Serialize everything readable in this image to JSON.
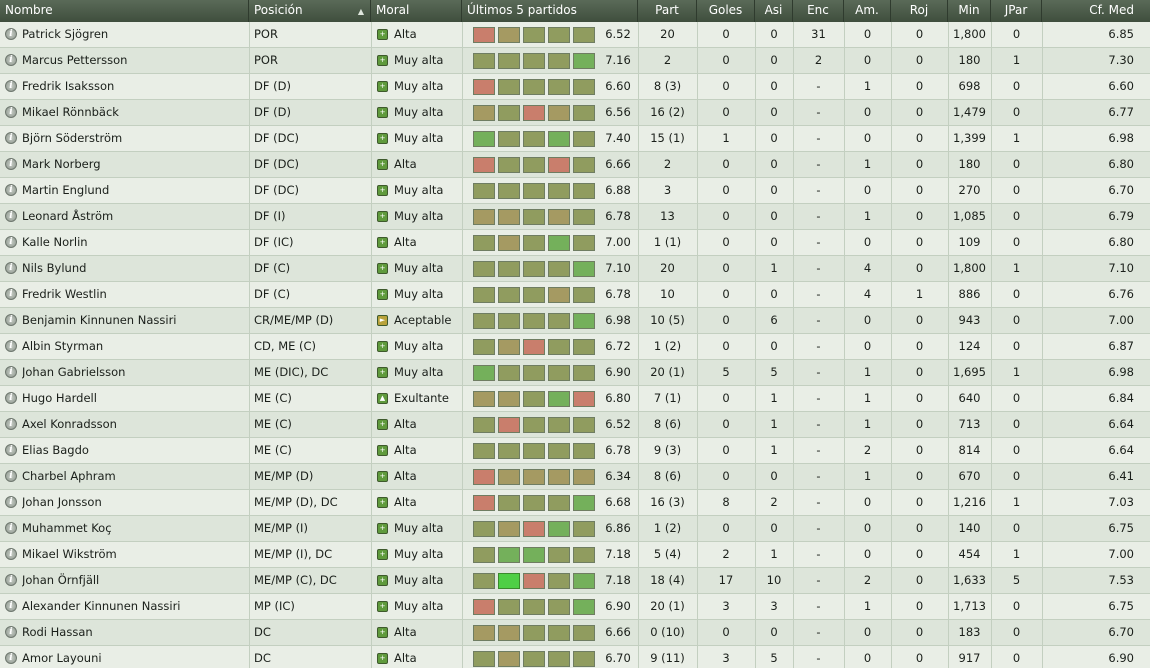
{
  "colors": {
    "bad": "#c97e6c",
    "avg": "#a59a62",
    "fair": "#909c5f",
    "good": "#74b05b",
    "best": "#4fcf45",
    "moral_high": "#5f9a3c",
    "moral_ok": "#b8a23a"
  },
  "header": {
    "name": "Nombre",
    "position": "Posición",
    "moral": "Moral",
    "last5": "Últimos 5 partidos",
    "apps": "Part",
    "goals": "Goles",
    "assists": "Asi",
    "enc": "Enc",
    "yellow": "Am.",
    "red": "Roj",
    "minutes": "Min",
    "jpar": "JPar",
    "avg_rating": "Cf. Med"
  },
  "players": [
    {
      "name": "Patrick Sjögren",
      "position": "POR",
      "moral": "Alta",
      "moral_icon": "plus-icon",
      "form": [
        "bad",
        "avg",
        "fair",
        "fair",
        "fair"
      ],
      "form_avg": "6.52",
      "apps": "20",
      "goals": "0",
      "assists": "0",
      "enc": "31",
      "yellow": "0",
      "red": "0",
      "minutes": "1,800",
      "jpar": "0",
      "rating": "6.85"
    },
    {
      "name": "Marcus Pettersson",
      "position": "POR",
      "moral": "Muy alta",
      "moral_icon": "plus-icon",
      "form": [
        "fair",
        "fair",
        "fair",
        "fair",
        "good"
      ],
      "form_avg": "7.16",
      "apps": "2",
      "goals": "0",
      "assists": "0",
      "enc": "2",
      "yellow": "0",
      "red": "0",
      "minutes": "180",
      "jpar": "1",
      "rating": "7.30"
    },
    {
      "name": "Fredrik Isaksson",
      "position": "DF (D)",
      "moral": "Muy alta",
      "moral_icon": "plus-icon",
      "form": [
        "bad",
        "fair",
        "fair",
        "fair",
        "fair"
      ],
      "form_avg": "6.60",
      "apps": "8 (3)",
      "goals": "0",
      "assists": "0",
      "enc": "-",
      "yellow": "1",
      "red": "0",
      "minutes": "698",
      "jpar": "0",
      "rating": "6.60"
    },
    {
      "name": "Mikael Rönnbäck",
      "position": "DF (D)",
      "moral": "Muy alta",
      "moral_icon": "plus-icon",
      "form": [
        "avg",
        "fair",
        "bad",
        "avg",
        "fair"
      ],
      "form_avg": "6.56",
      "apps": "16 (2)",
      "goals": "0",
      "assists": "0",
      "enc": "-",
      "yellow": "0",
      "red": "0",
      "minutes": "1,479",
      "jpar": "0",
      "rating": "6.77"
    },
    {
      "name": "Björn Söderström",
      "position": "DF (DC)",
      "moral": "Muy alta",
      "moral_icon": "plus-icon",
      "form": [
        "good",
        "fair",
        "fair",
        "good",
        "fair"
      ],
      "form_avg": "7.40",
      "apps": "15 (1)",
      "goals": "1",
      "assists": "0",
      "enc": "-",
      "yellow": "0",
      "red": "0",
      "minutes": "1,399",
      "jpar": "1",
      "rating": "6.98"
    },
    {
      "name": "Mark Norberg",
      "position": "DF (DC)",
      "moral": "Alta",
      "moral_icon": "plus-icon",
      "form": [
        "bad",
        "fair",
        "fair",
        "bad",
        "fair"
      ],
      "form_avg": "6.66",
      "apps": "2",
      "goals": "0",
      "assists": "0",
      "enc": "-",
      "yellow": "1",
      "red": "0",
      "minutes": "180",
      "jpar": "0",
      "rating": "6.80"
    },
    {
      "name": "Martin Englund",
      "position": "DF (DC)",
      "moral": "Muy alta",
      "moral_icon": "plus-icon",
      "form": [
        "fair",
        "fair",
        "fair",
        "fair",
        "fair"
      ],
      "form_avg": "6.88",
      "apps": "3",
      "goals": "0",
      "assists": "0",
      "enc": "-",
      "yellow": "0",
      "red": "0",
      "minutes": "270",
      "jpar": "0",
      "rating": "6.70"
    },
    {
      "name": "Leonard Åström",
      "position": "DF (I)",
      "moral": "Muy alta",
      "moral_icon": "plus-icon",
      "form": [
        "avg",
        "avg",
        "fair",
        "avg",
        "fair"
      ],
      "form_avg": "6.78",
      "apps": "13",
      "goals": "0",
      "assists": "0",
      "enc": "-",
      "yellow": "1",
      "red": "0",
      "minutes": "1,085",
      "jpar": "0",
      "rating": "6.79"
    },
    {
      "name": "Kalle Norlin",
      "position": "DF (IC)",
      "moral": "Alta",
      "moral_icon": "plus-icon",
      "form": [
        "fair",
        "avg",
        "fair",
        "good",
        "fair"
      ],
      "form_avg": "7.00",
      "apps": "1 (1)",
      "goals": "0",
      "assists": "0",
      "enc": "-",
      "yellow": "0",
      "red": "0",
      "minutes": "109",
      "jpar": "0",
      "rating": "6.80"
    },
    {
      "name": "Nils Bylund",
      "position": "DF (C)",
      "moral": "Muy alta",
      "moral_icon": "plus-icon",
      "form": [
        "fair",
        "fair",
        "fair",
        "fair",
        "good"
      ],
      "form_avg": "7.10",
      "apps": "20",
      "goals": "0",
      "assists": "1",
      "enc": "-",
      "yellow": "4",
      "red": "0",
      "minutes": "1,800",
      "jpar": "1",
      "rating": "7.10"
    },
    {
      "name": "Fredrik Westlin",
      "position": "DF (C)",
      "moral": "Muy alta",
      "moral_icon": "plus-icon",
      "form": [
        "fair",
        "fair",
        "fair",
        "avg",
        "fair"
      ],
      "form_avg": "6.78",
      "apps": "10",
      "goals": "0",
      "assists": "0",
      "enc": "-",
      "yellow": "4",
      "red": "1",
      "minutes": "886",
      "jpar": "0",
      "rating": "6.76"
    },
    {
      "name": "Benjamin Kinnunen Nassiri",
      "position": "CR/ME/MP (D)",
      "moral": "Aceptable",
      "moral_icon": "arrow-right-icon",
      "form": [
        "fair",
        "fair",
        "fair",
        "fair",
        "good"
      ],
      "form_avg": "6.98",
      "apps": "10 (5)",
      "goals": "0",
      "assists": "6",
      "enc": "-",
      "yellow": "0",
      "red": "0",
      "minutes": "943",
      "jpar": "0",
      "rating": "7.00"
    },
    {
      "name": "Albin Styrman",
      "position": "CD, ME (C)",
      "moral": "Muy alta",
      "moral_icon": "plus-icon",
      "form": [
        "fair",
        "avg",
        "bad",
        "fair",
        "fair"
      ],
      "form_avg": "6.72",
      "apps": "1 (2)",
      "goals": "0",
      "assists": "0",
      "enc": "-",
      "yellow": "0",
      "red": "0",
      "minutes": "124",
      "jpar": "0",
      "rating": "6.87"
    },
    {
      "name": "Johan Gabrielsson",
      "position": "ME (DIC), DC",
      "moral": "Muy alta",
      "moral_icon": "plus-icon",
      "form": [
        "good",
        "fair",
        "fair",
        "fair",
        "fair"
      ],
      "form_avg": "6.90",
      "apps": "20 (1)",
      "goals": "5",
      "assists": "5",
      "enc": "-",
      "yellow": "1",
      "red": "0",
      "minutes": "1,695",
      "jpar": "1",
      "rating": "6.98"
    },
    {
      "name": "Hugo Hardell",
      "position": "ME (C)",
      "moral": "Exultante",
      "moral_icon": "up-arrow-icon",
      "form": [
        "avg",
        "avg",
        "fair",
        "good",
        "bad"
      ],
      "form_avg": "6.80",
      "apps": "7 (1)",
      "goals": "0",
      "assists": "1",
      "enc": "-",
      "yellow": "1",
      "red": "0",
      "minutes": "640",
      "jpar": "0",
      "rating": "6.84"
    },
    {
      "name": "Axel Konradsson",
      "position": "ME (C)",
      "moral": "Alta",
      "moral_icon": "plus-icon",
      "form": [
        "fair",
        "bad",
        "fair",
        "fair",
        "fair"
      ],
      "form_avg": "6.52",
      "apps": "8 (6)",
      "goals": "0",
      "assists": "1",
      "enc": "-",
      "yellow": "1",
      "red": "0",
      "minutes": "713",
      "jpar": "0",
      "rating": "6.64"
    },
    {
      "name": "Elias Bagdo",
      "position": "ME (C)",
      "moral": "Alta",
      "moral_icon": "plus-icon",
      "form": [
        "fair",
        "fair",
        "fair",
        "fair",
        "fair"
      ],
      "form_avg": "6.78",
      "apps": "9 (3)",
      "goals": "0",
      "assists": "1",
      "enc": "-",
      "yellow": "2",
      "red": "0",
      "minutes": "814",
      "jpar": "0",
      "rating": "6.64"
    },
    {
      "name": "Charbel Aphram",
      "position": "ME/MP (D)",
      "moral": "Alta",
      "moral_icon": "plus-icon",
      "form": [
        "bad",
        "avg",
        "avg",
        "avg",
        "avg"
      ],
      "form_avg": "6.34",
      "apps": "8 (6)",
      "goals": "0",
      "assists": "0",
      "enc": "-",
      "yellow": "1",
      "red": "0",
      "minutes": "670",
      "jpar": "0",
      "rating": "6.41"
    },
    {
      "name": "Johan Jonsson",
      "position": "ME/MP (D), DC",
      "moral": "Alta",
      "moral_icon": "plus-icon",
      "form": [
        "bad",
        "fair",
        "fair",
        "fair",
        "good"
      ],
      "form_avg": "6.68",
      "apps": "16 (3)",
      "goals": "8",
      "assists": "2",
      "enc": "-",
      "yellow": "0",
      "red": "0",
      "minutes": "1,216",
      "jpar": "1",
      "rating": "7.03"
    },
    {
      "name": "Muhammet Koç",
      "position": "ME/MP (I)",
      "moral": "Muy alta",
      "moral_icon": "plus-icon",
      "form": [
        "fair",
        "avg",
        "bad",
        "good",
        "fair"
      ],
      "form_avg": "6.86",
      "apps": "1 (2)",
      "goals": "0",
      "assists": "0",
      "enc": "-",
      "yellow": "0",
      "red": "0",
      "minutes": "140",
      "jpar": "0",
      "rating": "6.75"
    },
    {
      "name": "Mikael Wikström",
      "position": "ME/MP (I), DC",
      "moral": "Muy alta",
      "moral_icon": "plus-icon",
      "form": [
        "fair",
        "good",
        "good",
        "fair",
        "fair"
      ],
      "form_avg": "7.18",
      "apps": "5 (4)",
      "goals": "2",
      "assists": "1",
      "enc": "-",
      "yellow": "0",
      "red": "0",
      "minutes": "454",
      "jpar": "1",
      "rating": "7.00"
    },
    {
      "name": "Johan Örnfjäll",
      "position": "ME/MP (C), DC",
      "moral": "Muy alta",
      "moral_icon": "plus-icon",
      "form": [
        "fair",
        "best",
        "bad",
        "fair",
        "good"
      ],
      "form_avg": "7.18",
      "apps": "18 (4)",
      "goals": "17",
      "assists": "10",
      "enc": "-",
      "yellow": "2",
      "red": "0",
      "minutes": "1,633",
      "jpar": "5",
      "rating": "7.53"
    },
    {
      "name": "Alexander Kinnunen Nassiri",
      "position": "MP (IC)",
      "moral": "Muy alta",
      "moral_icon": "plus-icon",
      "form": [
        "bad",
        "fair",
        "fair",
        "fair",
        "good"
      ],
      "form_avg": "6.90",
      "apps": "20 (1)",
      "goals": "3",
      "assists": "3",
      "enc": "-",
      "yellow": "1",
      "red": "0",
      "minutes": "1,713",
      "jpar": "0",
      "rating": "6.75"
    },
    {
      "name": "Rodi Hassan",
      "position": "DC",
      "moral": "Alta",
      "moral_icon": "plus-icon",
      "form": [
        "avg",
        "avg",
        "fair",
        "fair",
        "fair"
      ],
      "form_avg": "6.66",
      "apps": "0 (10)",
      "goals": "0",
      "assists": "0",
      "enc": "-",
      "yellow": "0",
      "red": "0",
      "minutes": "183",
      "jpar": "0",
      "rating": "6.70"
    },
    {
      "name": "Amor Layouni",
      "position": "DC",
      "moral": "Alta",
      "moral_icon": "plus-icon",
      "form": [
        "fair",
        "avg",
        "fair",
        "fair",
        "fair"
      ],
      "form_avg": "6.70",
      "apps": "9 (11)",
      "goals": "3",
      "assists": "5",
      "enc": "-",
      "yellow": "0",
      "red": "0",
      "minutes": "917",
      "jpar": "0",
      "rating": "6.90"
    }
  ]
}
